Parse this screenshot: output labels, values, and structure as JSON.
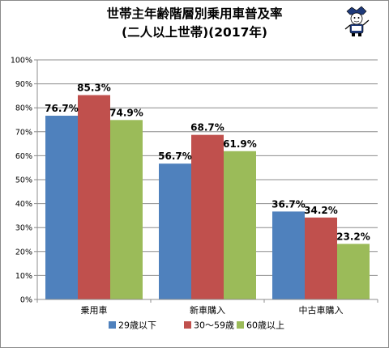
{
  "chart_data": {
    "type": "bar",
    "title_line1": "世帯主年齢階層別乗用車普及率",
    "title_line2": "(二人以上世帯)(2017年)",
    "categories": [
      "乗用車",
      "新車購入",
      "中古車購入"
    ],
    "series": [
      {
        "name": "29歳以下",
        "values": [
          76.7,
          56.7,
          36.7
        ],
        "color": "#4f81bd"
      },
      {
        "name": "30〜59歳",
        "values": [
          85.3,
          68.7,
          34.2
        ],
        "color": "#c0504d"
      },
      {
        "name": "60歳以上",
        "values": [
          74.9,
          61.9,
          23.2
        ],
        "color": "#9bbb59"
      }
    ],
    "data_labels": [
      [
        "76.7%",
        "56.7%",
        "36.7%"
      ],
      [
        "85.3%",
        "68.7%",
        "34.2%"
      ],
      [
        "74.9%",
        "61.9%",
        "23.2%"
      ]
    ],
    "y_ticks": [
      "0%",
      "10%",
      "20%",
      "30%",
      "40%",
      "50%",
      "60%",
      "70%",
      "80%",
      "90%",
      "100%"
    ],
    "ylim": [
      0,
      100
    ],
    "grid": true,
    "legend_position": "bottom"
  }
}
